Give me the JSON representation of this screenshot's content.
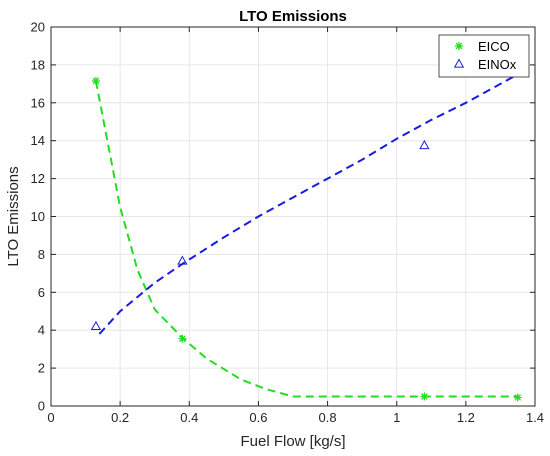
{
  "chart_data": {
    "type": "scatter",
    "title": "LTO Emissions",
    "xlabel": "Fuel Flow [kg/s]",
    "ylabel": "LTO Emissions",
    "xlim": [
      0,
      1.4
    ],
    "ylim": [
      0,
      20
    ],
    "xticks": [
      0,
      0.2,
      0.4,
      0.6,
      0.8,
      1,
      1.2,
      1.4
    ],
    "xtick_labels": [
      "0",
      "0.2",
      "0.4",
      "0.6",
      "0.8",
      "1",
      "1.2",
      "1.4"
    ],
    "yticks": [
      0,
      2,
      4,
      6,
      8,
      10,
      12,
      14,
      16,
      18,
      20
    ],
    "ytick_labels": [
      "0",
      "2",
      "4",
      "6",
      "8",
      "10",
      "12",
      "14",
      "16",
      "18",
      "20"
    ],
    "grid": true,
    "legend_position": "top-right",
    "series": [
      {
        "name": "EICO",
        "color": "#22dd22",
        "marker": "asterisk",
        "x": [
          0.13,
          0.38,
          1.08,
          1.35
        ],
        "y": [
          17.15,
          3.55,
          0.5,
          0.45
        ],
        "fit": {
          "style": "dashed",
          "x": [
            0.13,
            0.2,
            0.25,
            0.3,
            0.38,
            0.45,
            0.55,
            0.62,
            0.7,
            0.8,
            1.0,
            1.2,
            1.35
          ],
          "y": [
            17.15,
            10.5,
            7.2,
            5.1,
            3.6,
            2.5,
            1.4,
            0.9,
            0.5,
            0.5,
            0.5,
            0.5,
            0.5
          ]
        }
      },
      {
        "name": "EINOx",
        "color": "#1a1adf",
        "marker": "triangle",
        "x": [
          0.13,
          0.38,
          1.08
        ],
        "y": [
          4.2,
          7.65,
          13.75
        ],
        "fit": {
          "style": "dashed",
          "x": [
            0.14,
            0.2,
            0.3,
            0.38,
            0.5,
            0.6,
            0.7,
            0.8,
            0.9,
            1.0,
            1.1,
            1.2,
            1.3,
            1.36
          ],
          "y": [
            3.8,
            5.0,
            6.5,
            7.5,
            8.9,
            10.0,
            11.0,
            12.0,
            13.0,
            14.1,
            15.1,
            16.0,
            17.0,
            17.6
          ]
        }
      }
    ]
  }
}
